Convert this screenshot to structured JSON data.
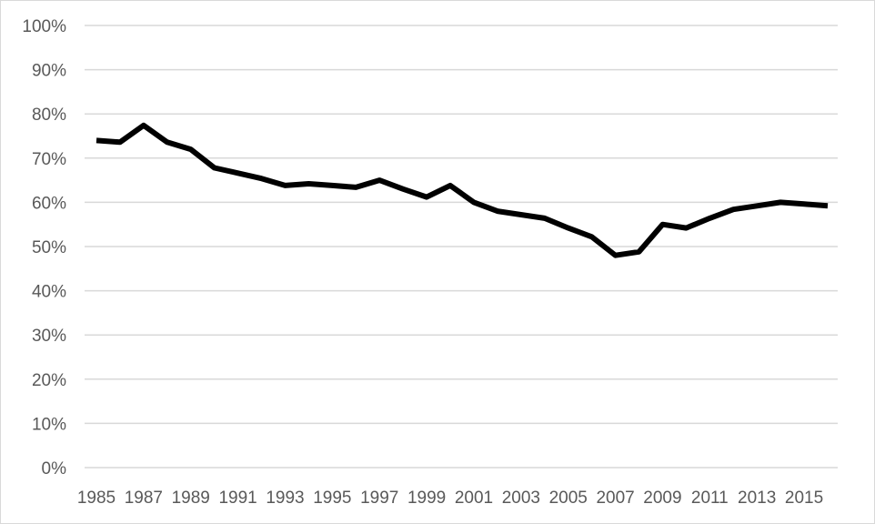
{
  "chart_data": {
    "type": "line",
    "title": "",
    "xlabel": "",
    "ylabel": "",
    "x": [
      1985,
      1986,
      1987,
      1988,
      1989,
      1990,
      1991,
      1992,
      1993,
      1994,
      1995,
      1996,
      1997,
      1998,
      1999,
      2000,
      2001,
      2002,
      2003,
      2004,
      2005,
      2006,
      2007,
      2008,
      2009,
      2010,
      2011,
      2012,
      2013,
      2014,
      2015,
      2016
    ],
    "x_tick_labels": [
      "1985",
      "1987",
      "1989",
      "1991",
      "1993",
      "1995",
      "1997",
      "1999",
      "2001",
      "2003",
      "2005",
      "2007",
      "2009",
      "2011",
      "2013",
      "2015"
    ],
    "y_tick_labels": [
      "0%",
      "10%",
      "20%",
      "30%",
      "40%",
      "50%",
      "60%",
      "70%",
      "80%",
      "90%",
      "100%"
    ],
    "ylim": [
      0,
      100
    ],
    "y_unit": "%",
    "grid": "horizontal",
    "legend": "none",
    "series": [
      {
        "color": "#000000",
        "values": [
          74.0,
          73.6,
          77.4,
          73.6,
          72.0,
          67.8,
          66.6,
          65.4,
          63.8,
          64.2,
          63.8,
          63.4,
          65.0,
          63.0,
          61.2,
          63.8,
          60.0,
          58.0,
          57.2,
          56.4,
          54.2,
          52.2,
          48.0,
          48.8,
          55.0,
          54.2,
          56.4,
          58.4,
          59.2,
          60.0,
          59.6,
          59.2
        ]
      }
    ]
  }
}
